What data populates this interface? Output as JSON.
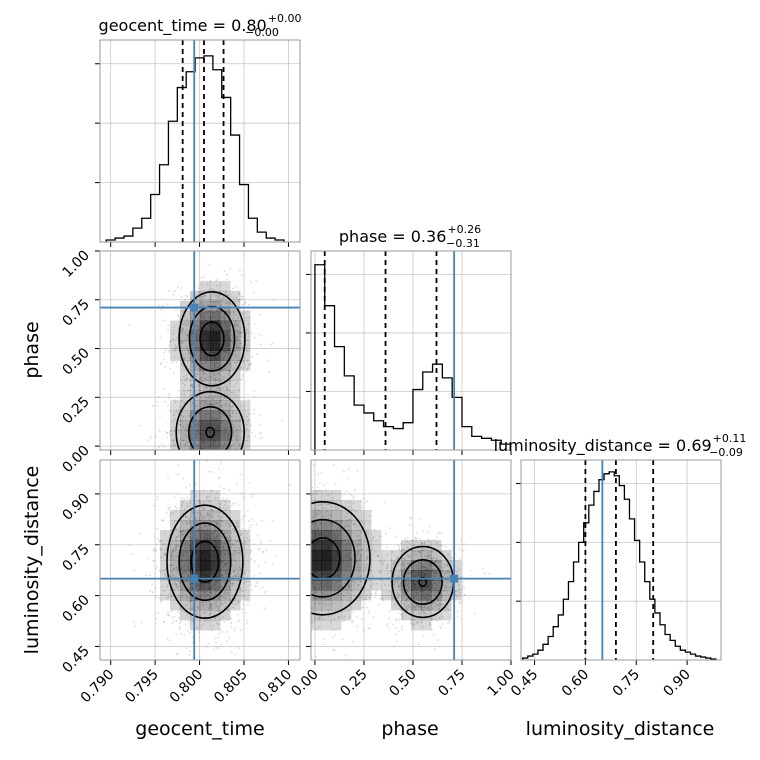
{
  "figure": {
    "type": "corner-plot"
  },
  "chart_data": {
    "type": "corner",
    "parameters": [
      "geocent_time",
      "phase",
      "luminosity_distance"
    ],
    "injection": {
      "geocent_time": 0.7994,
      "phase": 0.71,
      "luminosity_distance": 0.65
    },
    "titles": [
      {
        "param": "geocent_time",
        "prefix": "geocent_time = ",
        "median": "0.80",
        "plus": "+0.00",
        "minus": "−0.00"
      },
      {
        "param": "phase",
        "prefix": "phase = ",
        "median": "0.36",
        "plus": "+0.26",
        "minus": "−0.31"
      },
      {
        "param": "luminosity_distance",
        "prefix": "luminosity_distance = ",
        "median": "0.69",
        "plus": "+0.11",
        "minus": "−0.09"
      }
    ],
    "axes": {
      "geocent_time": {
        "label": "geocent_time",
        "lim": [
          0.7888,
          0.8113
        ],
        "ticks": [
          0.79,
          0.795,
          0.8,
          0.805,
          0.81
        ],
        "tick_labels": [
          "0.790",
          "0.795",
          "0.800",
          "0.805",
          "0.810"
        ]
      },
      "phase": {
        "label": "phase",
        "lim": [
          -0.02,
          1.0
        ],
        "ticks": [
          0.0,
          0.25,
          0.5,
          0.75,
          1.0
        ],
        "tick_labels": [
          "0.00",
          "0.25",
          "0.50",
          "0.75",
          "1.00"
        ]
      },
      "luminosity_distance": {
        "label": "luminosity_distance",
        "lim": [
          0.41,
          1.0
        ],
        "ticks": [
          0.45,
          0.6,
          0.75,
          0.9
        ],
        "tick_labels": [
          "0.45",
          "0.60",
          "0.75",
          "0.90"
        ]
      }
    },
    "histograms": {
      "geocent_time": {
        "bin_edges": [
          0.7895,
          0.7905,
          0.7915,
          0.7925,
          0.7935,
          0.7945,
          0.7955,
          0.7965,
          0.7975,
          0.7985,
          0.7995,
          0.8005,
          0.8015,
          0.8025,
          0.8035,
          0.8045,
          0.8055,
          0.8065,
          0.8075,
          0.8085,
          0.8095
        ],
        "counts": [
          0.01,
          0.02,
          0.03,
          0.07,
          0.12,
          0.24,
          0.39,
          0.61,
          0.78,
          0.86,
          0.93,
          0.94,
          0.87,
          0.73,
          0.54,
          0.29,
          0.12,
          0.05,
          0.02,
          0.01
        ],
        "quantile_lines": [
          0.7981,
          0.8005,
          0.8027
        ]
      },
      "phase": {
        "bin_edges": [
          0.0,
          0.05,
          0.1,
          0.15,
          0.2,
          0.25,
          0.3,
          0.35,
          0.4,
          0.45,
          0.5,
          0.55,
          0.6,
          0.65,
          0.7,
          0.75,
          0.8,
          0.85,
          0.9,
          0.95,
          1.0
        ],
        "counts": [
          0.95,
          0.74,
          0.53,
          0.38,
          0.23,
          0.19,
          0.15,
          0.12,
          0.11,
          0.14,
          0.31,
          0.4,
          0.44,
          0.37,
          0.27,
          0.12,
          0.07,
          0.06,
          0.05,
          0.03
        ],
        "quantile_lines": [
          0.05,
          0.36,
          0.62
        ]
      },
      "luminosity_distance": {
        "bin_edges": [
          0.415,
          0.43,
          0.445,
          0.46,
          0.475,
          0.49,
          0.505,
          0.52,
          0.535,
          0.55,
          0.565,
          0.58,
          0.595,
          0.61,
          0.625,
          0.64,
          0.655,
          0.67,
          0.685,
          0.7,
          0.715,
          0.73,
          0.745,
          0.76,
          0.775,
          0.79,
          0.805,
          0.82,
          0.835,
          0.85,
          0.865,
          0.88,
          0.895,
          0.91,
          0.925,
          0.94,
          0.955,
          0.97,
          0.985
        ],
        "counts": [
          0.01,
          0.02,
          0.03,
          0.05,
          0.08,
          0.12,
          0.17,
          0.23,
          0.31,
          0.4,
          0.5,
          0.6,
          0.7,
          0.79,
          0.86,
          0.92,
          0.95,
          0.96,
          0.94,
          0.89,
          0.82,
          0.72,
          0.61,
          0.5,
          0.4,
          0.31,
          0.24,
          0.18,
          0.13,
          0.1,
          0.07,
          0.05,
          0.04,
          0.03,
          0.02,
          0.015,
          0.01,
          0.005
        ],
        "quantile_lines": [
          0.6,
          0.69,
          0.8
        ]
      }
    },
    "scatter_panels": [
      {
        "x": "geocent_time",
        "y": "phase",
        "modes": [
          {
            "cx": 0.8014,
            "cy": 0.55,
            "sx": 0.002,
            "sy": 0.13,
            "w": 0.55
          },
          {
            "cx": 0.8012,
            "cy": 0.07,
            "sx": 0.0022,
            "sy": 0.12,
            "w": 0.45
          }
        ]
      },
      {
        "x": "geocent_time",
        "y": "luminosity_distance",
        "modes": [
          {
            "cx": 0.8006,
            "cy": 0.7,
            "sx": 0.0023,
            "sy": 0.09,
            "w": 1.0
          }
        ]
      },
      {
        "x": "phase",
        "y": "luminosity_distance",
        "modes": [
          {
            "cx": 0.04,
            "cy": 0.71,
            "sx": 0.13,
            "sy": 0.09,
            "w": 0.55
          },
          {
            "cx": 0.55,
            "cy": 0.64,
            "sx": 0.09,
            "sy": 0.06,
            "w": 0.45
          }
        ]
      }
    ],
    "colors": {
      "hist": "#000000",
      "truth": "#4682b4",
      "grid": "#c8c8c8",
      "points": "#999999",
      "density": "#000000"
    }
  }
}
